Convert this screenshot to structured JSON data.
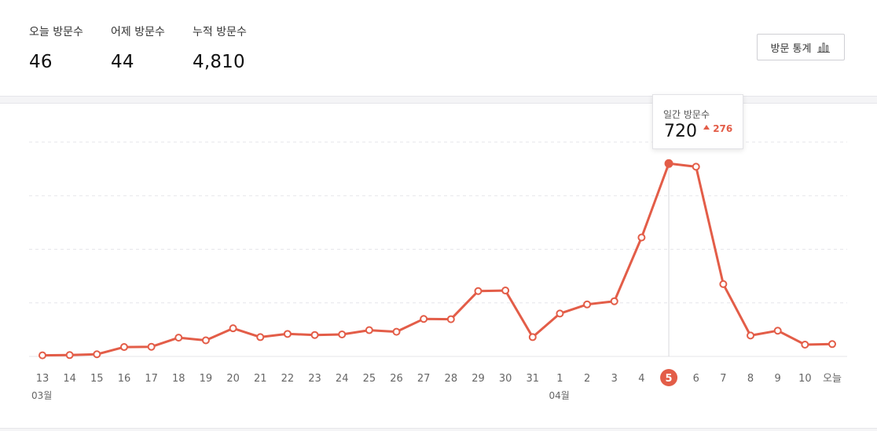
{
  "stats": {
    "today_label": "오늘 방문수",
    "today_value": "46",
    "yesterday_label": "어제 방문수",
    "yesterday_value": "44",
    "total_label": "누적 방문수",
    "total_value": "4,810",
    "button_label": "방문 통계",
    "button_icon": "bar-chart-icon"
  },
  "tooltip": {
    "label": "일간 방문수",
    "value": "720",
    "delta": "276",
    "delta_icon": "triangle-up-icon"
  },
  "colors": {
    "line": "#e35d48",
    "highlight": "#e35d48",
    "grid": "#e6e6ea",
    "tick_text": "#666666"
  },
  "chart_data": {
    "type": "line",
    "categories": [
      "13",
      "14",
      "15",
      "16",
      "17",
      "18",
      "19",
      "20",
      "21",
      "22",
      "23",
      "24",
      "25",
      "26",
      "27",
      "28",
      "29",
      "30",
      "31",
      "1",
      "2",
      "3",
      "4",
      "5",
      "6",
      "7",
      "8",
      "9",
      "10",
      "오늘"
    ],
    "month_labels": [
      {
        "index": 0,
        "label": "03월"
      },
      {
        "index": 19,
        "label": "04월"
      }
    ],
    "series": [
      {
        "values": [
          4,
          5,
          8,
          35,
          36,
          70,
          60,
          105,
          72,
          84,
          80,
          82,
          98,
          92,
          140,
          139,
          244,
          246,
          72,
          160,
          194,
          206,
          444,
          720,
          708,
          270,
          78,
          96,
          44,
          46
        ]
      }
    ],
    "highlight_index": 23,
    "ylim": [
      0,
      800
    ],
    "grid": true,
    "xlabel": "",
    "ylabel": ""
  }
}
